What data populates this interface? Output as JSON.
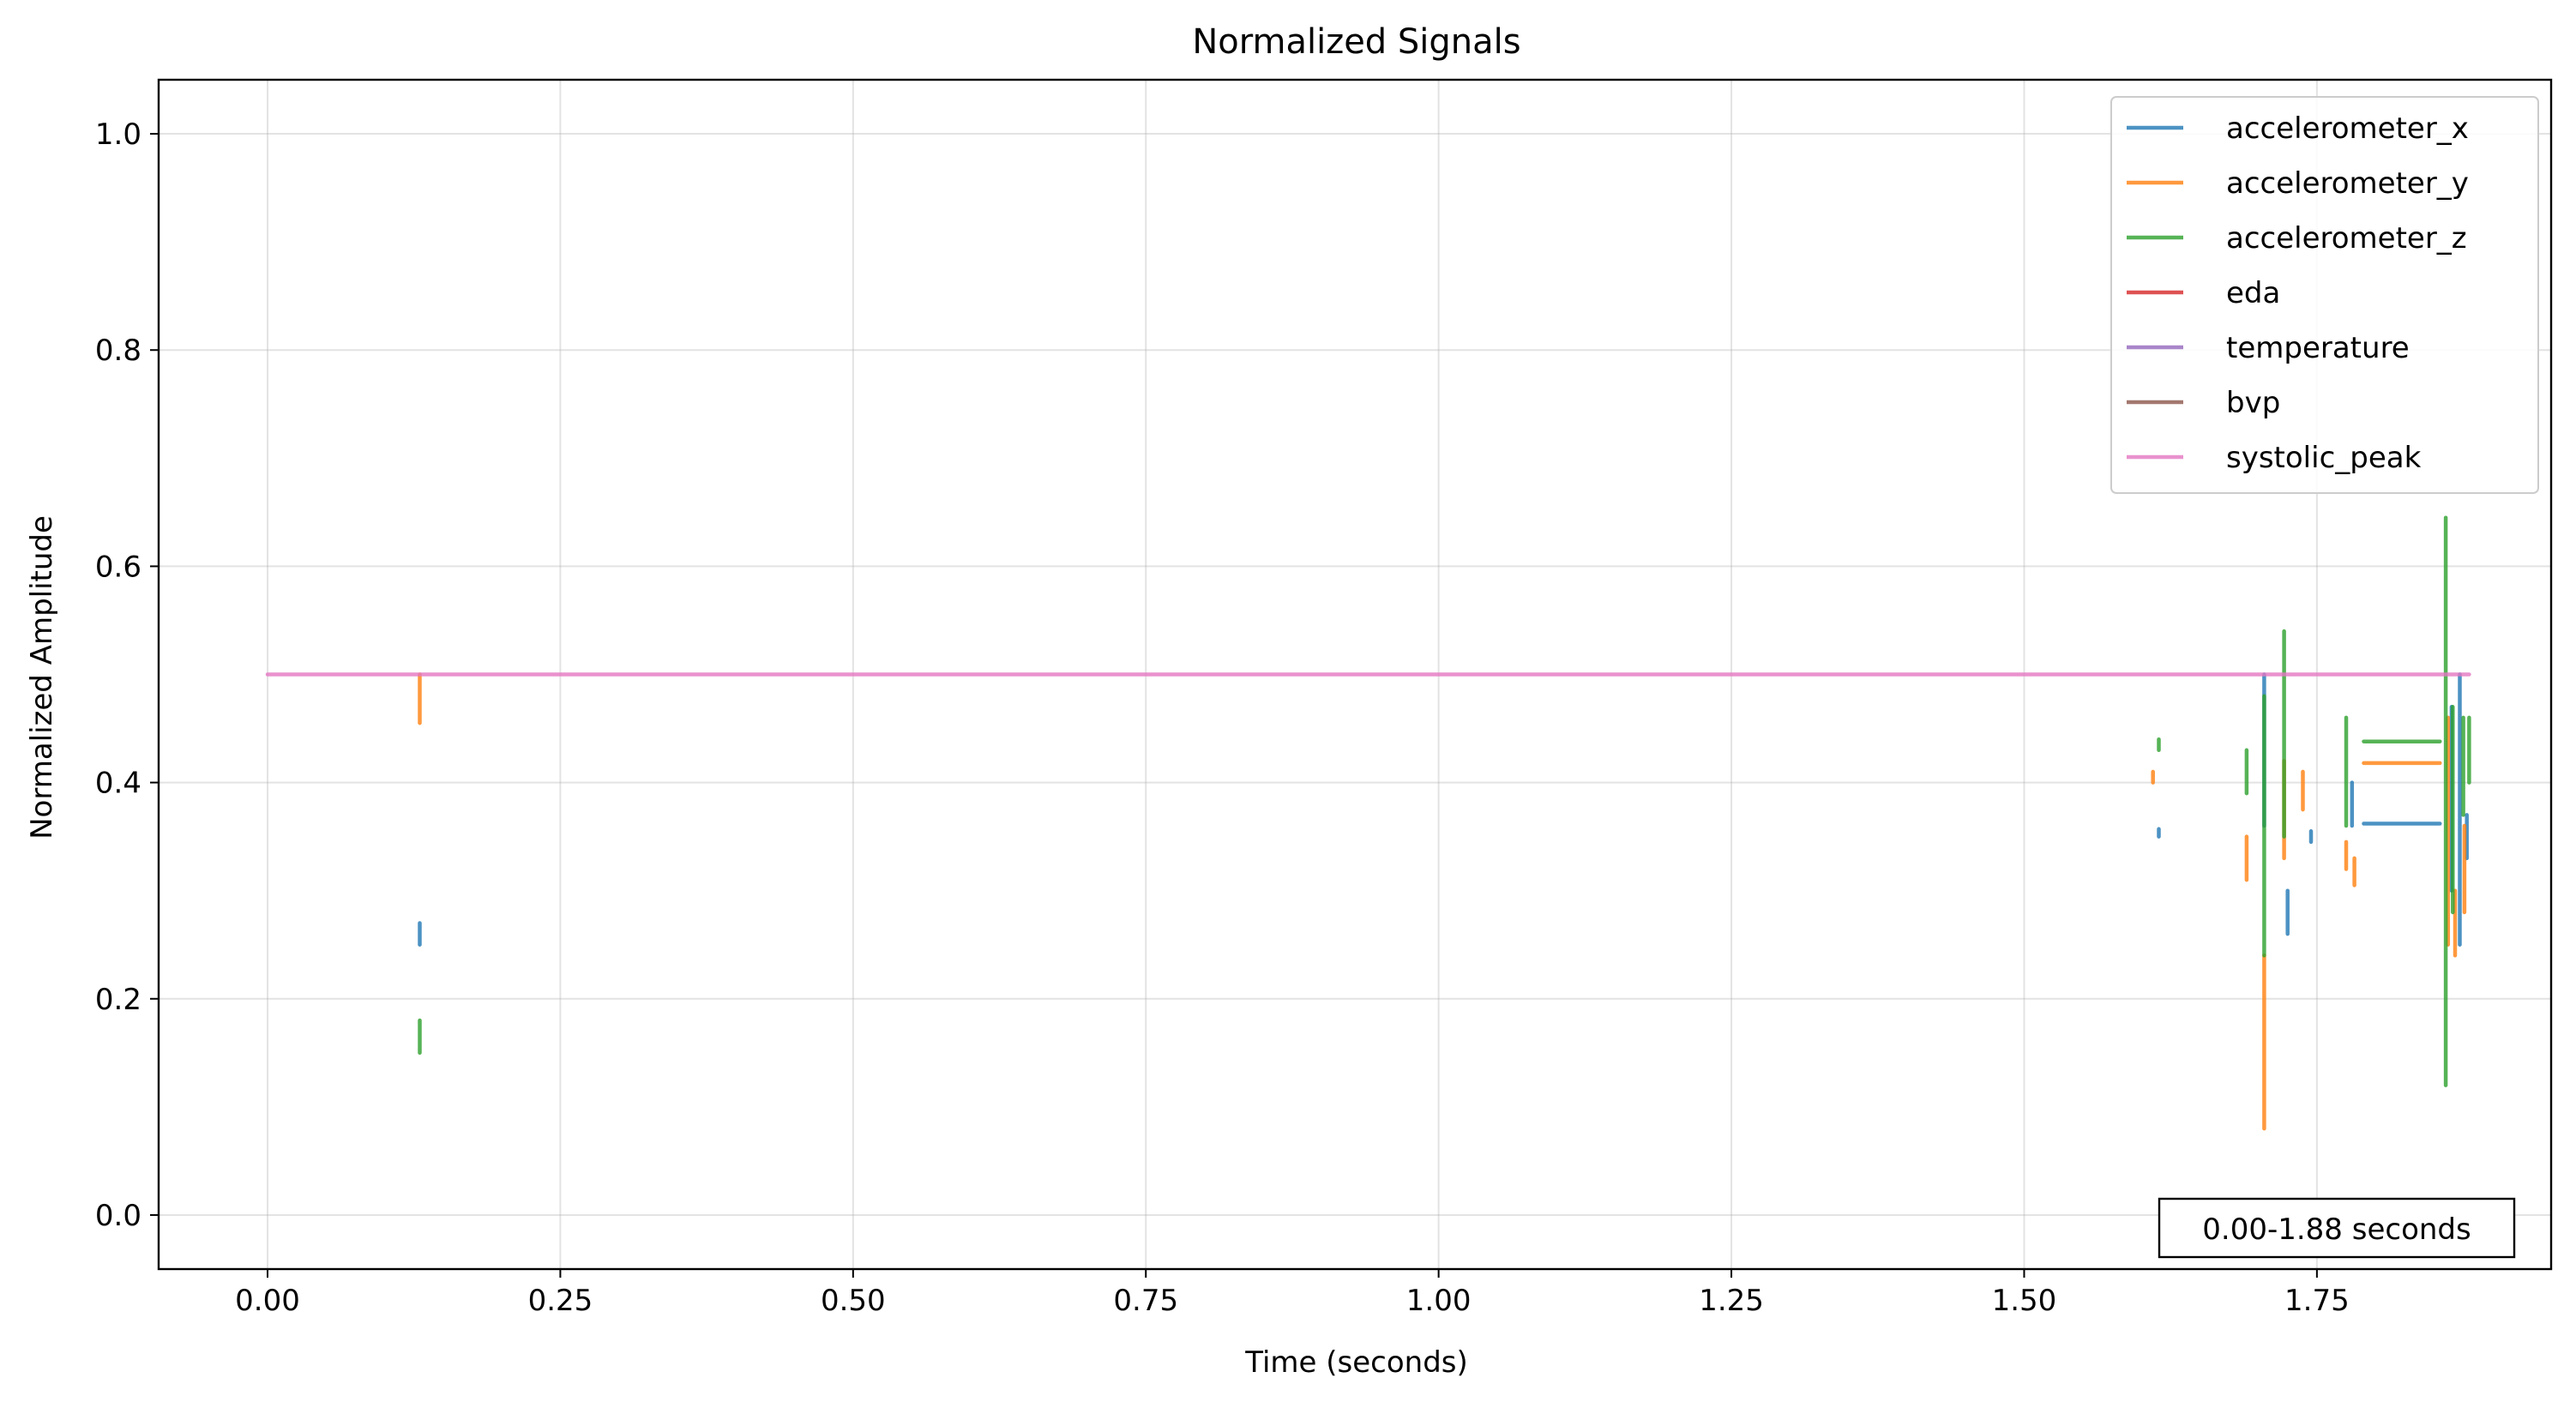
{
  "chart_data": {
    "type": "line",
    "title": "Normalized Signals",
    "xlabel": "Time (seconds)",
    "ylabel": "Normalized Amplitude",
    "xlim": [
      -0.093,
      1.95
    ],
    "ylim": [
      -0.05,
      1.05
    ],
    "xticks": [
      0.0,
      0.25,
      0.5,
      0.75,
      1.0,
      1.25,
      1.5,
      1.75
    ],
    "xtick_labels": [
      "0.00",
      "0.25",
      "0.50",
      "0.75",
      "1.00",
      "1.25",
      "1.50",
      "1.75"
    ],
    "yticks": [
      0.0,
      0.2,
      0.4,
      0.6,
      0.8,
      1.0
    ],
    "ytick_labels": [
      "0.0",
      "0.2",
      "0.4",
      "0.6",
      "0.8",
      "1.0"
    ],
    "grid": true,
    "legend_position": "top-right",
    "annotation": "0.00-1.88 seconds",
    "series": [
      {
        "name": "accelerometer_x",
        "color": "#1f77b4",
        "segments": [
          [
            [
              0.13,
              0.25
            ],
            [
              0.13,
              0.27
            ]
          ],
          [
            [
              1.615,
              0.35
            ],
            [
              1.615,
              0.357
            ]
          ],
          [
            [
              1.705,
              0.36
            ],
            [
              1.705,
              0.5
            ]
          ],
          [
            [
              1.725,
              0.26
            ],
            [
              1.725,
              0.3
            ]
          ],
          [
            [
              1.745,
              0.345
            ],
            [
              1.745,
              0.355
            ]
          ],
          [
            [
              1.78,
              0.36
            ],
            [
              1.78,
              0.4
            ]
          ],
          [
            [
              1.79,
              0.362
            ],
            [
              1.855,
              0.362
            ]
          ],
          [
            [
              1.865,
              0.3
            ],
            [
              1.865,
              0.47
            ]
          ],
          [
            [
              1.872,
              0.25
            ],
            [
              1.872,
              0.5
            ]
          ],
          [
            [
              1.878,
              0.33
            ],
            [
              1.878,
              0.37
            ]
          ]
        ]
      },
      {
        "name": "accelerometer_y",
        "color": "#ff7f0e",
        "segments": [
          [
            [
              0.13,
              0.455
            ],
            [
              0.13,
              0.5
            ]
          ],
          [
            [
              1.61,
              0.4
            ],
            [
              1.61,
              0.41
            ]
          ],
          [
            [
              1.69,
              0.31
            ],
            [
              1.69,
              0.35
            ]
          ],
          [
            [
              1.705,
              0.08
            ],
            [
              1.705,
              0.24
            ]
          ],
          [
            [
              1.722,
              0.33
            ],
            [
              1.722,
              0.42
            ]
          ],
          [
            [
              1.738,
              0.375
            ],
            [
              1.738,
              0.41
            ]
          ],
          [
            [
              1.775,
              0.32
            ],
            [
              1.775,
              0.345
            ]
          ],
          [
            [
              1.782,
              0.305
            ],
            [
              1.782,
              0.33
            ]
          ],
          [
            [
              1.79,
              0.418
            ],
            [
              1.855,
              0.418
            ]
          ],
          [
            [
              1.862,
              0.25
            ],
            [
              1.862,
              0.46
            ]
          ],
          [
            [
              1.868,
              0.24
            ],
            [
              1.868,
              0.3
            ]
          ],
          [
            [
              1.876,
              0.28
            ],
            [
              1.876,
              0.36
            ]
          ]
        ]
      },
      {
        "name": "accelerometer_z",
        "color": "#2ca02c",
        "segments": [
          [
            [
              0.13,
              0.15
            ],
            [
              0.13,
              0.18
            ]
          ],
          [
            [
              1.615,
              0.43
            ],
            [
              1.615,
              0.44
            ]
          ],
          [
            [
              1.69,
              0.39
            ],
            [
              1.69,
              0.43
            ]
          ],
          [
            [
              1.705,
              0.24
            ],
            [
              1.705,
              0.48
            ]
          ],
          [
            [
              1.722,
              0.35
            ],
            [
              1.722,
              0.54
            ]
          ],
          [
            [
              1.775,
              0.36
            ],
            [
              1.775,
              0.46
            ]
          ],
          [
            [
              1.79,
              0.438
            ],
            [
              1.855,
              0.438
            ]
          ],
          [
            [
              1.86,
              0.12
            ],
            [
              1.86,
              0.645
            ]
          ],
          [
            [
              1.866,
              0.28
            ],
            [
              1.866,
              0.47
            ]
          ],
          [
            [
              1.875,
              0.37
            ],
            [
              1.875,
              0.46
            ]
          ],
          [
            [
              1.88,
              0.4
            ],
            [
              1.88,
              0.46
            ]
          ]
        ]
      },
      {
        "name": "eda",
        "color": "#d62728",
        "segments": []
      },
      {
        "name": "temperature",
        "color": "#9467bd",
        "segments": []
      },
      {
        "name": "bvp",
        "color": "#8c564b",
        "segments": []
      },
      {
        "name": "systolic_peak",
        "color": "#e377c2",
        "segments": [
          [
            [
              0.0,
              0.5
            ],
            [
              1.88,
              0.5
            ]
          ]
        ]
      }
    ]
  }
}
